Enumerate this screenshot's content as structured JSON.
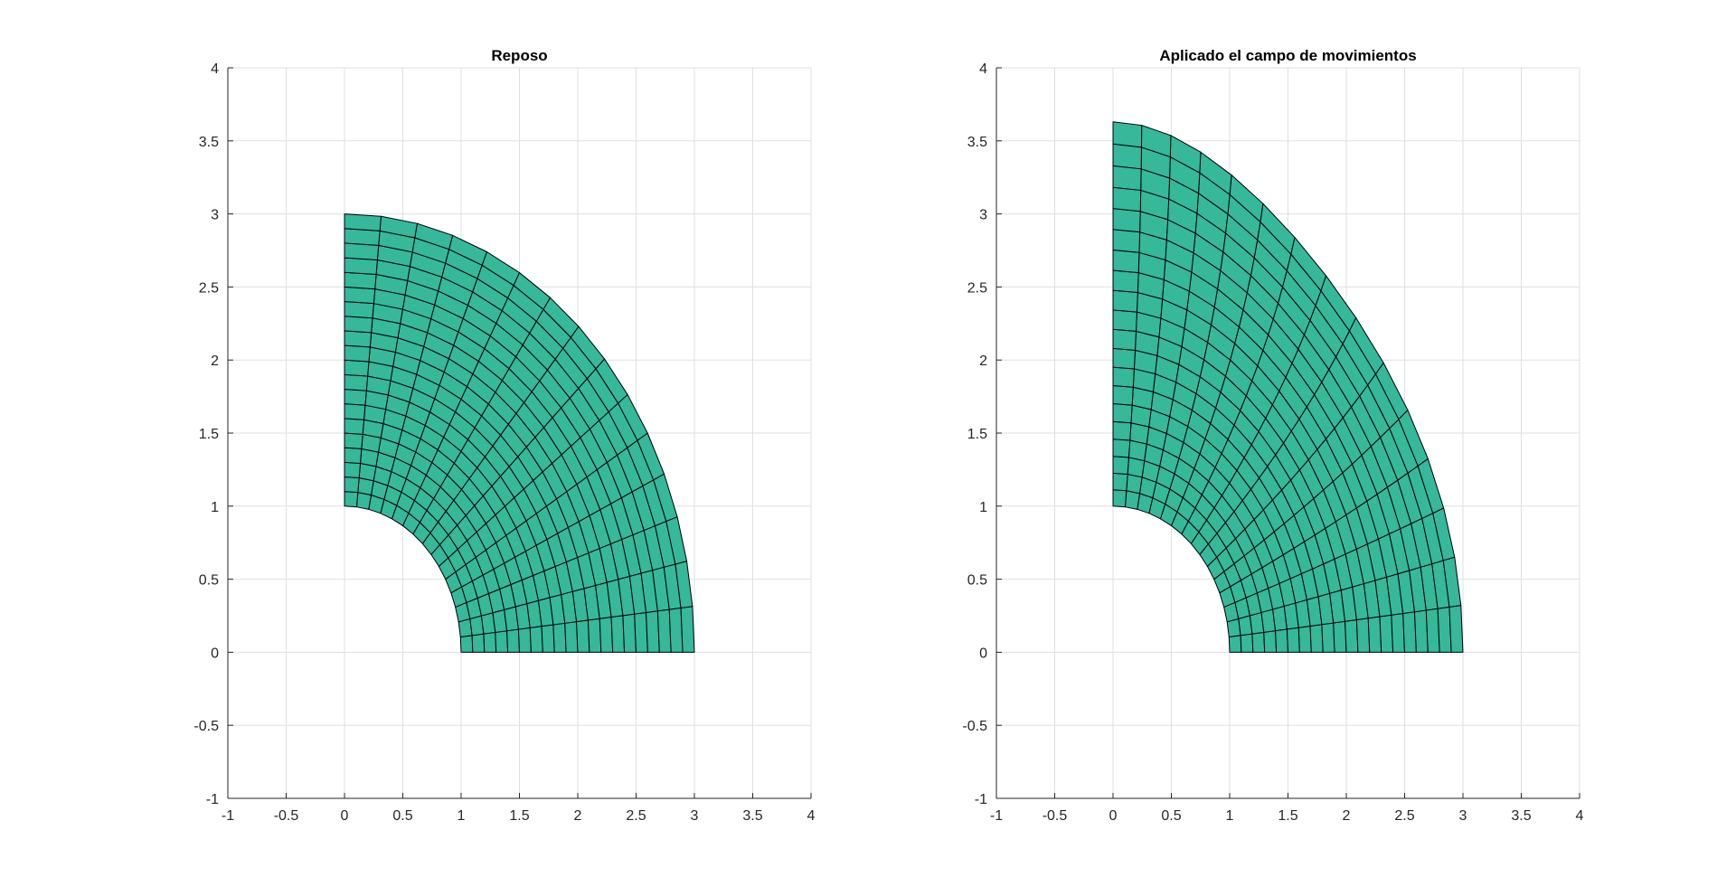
{
  "chart_data": [
    {
      "type": "mesh",
      "title": "Reposo",
      "xlim": [
        -1,
        4
      ],
      "ylim": [
        -1,
        4
      ],
      "x_ticks": [
        -1,
        -0.5,
        0,
        0.5,
        1,
        1.5,
        2,
        2.5,
        3,
        3.5,
        4
      ],
      "x_tick_labels": [
        "-1",
        "-0.5",
        "0",
        "0.5",
        "1",
        "1.5",
        "2",
        "2.5",
        "3",
        "3.5",
        "4"
      ],
      "y_ticks": [
        -1,
        -0.5,
        0,
        0.5,
        1,
        1.5,
        2,
        2.5,
        3,
        3.5,
        4
      ],
      "y_tick_labels": [
        "-1",
        "-0.5",
        "0",
        "0.5",
        "1",
        "1.5",
        "2",
        "2.5",
        "3",
        "3.5",
        "4"
      ],
      "grid": true,
      "face_color": "#36b89a",
      "edge_color": "#000000",
      "geometry": "quarter-annulus",
      "inner_radius": 1,
      "outer_radius": 3,
      "angle_range_deg": [
        0,
        90
      ],
      "radial_divisions": 20,
      "angular_divisions": 15,
      "displacement_scale": 0
    },
    {
      "type": "mesh",
      "title": "Aplicado el campo de movimientos",
      "xlim": [
        -1,
        4
      ],
      "ylim": [
        -1,
        4
      ],
      "x_ticks": [
        -1,
        -0.5,
        0,
        0.5,
        1,
        1.5,
        2,
        2.5,
        3,
        3.5,
        4
      ],
      "x_tick_labels": [
        "-1",
        "-0.5",
        "0",
        "0.5",
        "1",
        "1.5",
        "2",
        "2.5",
        "3",
        "3.5",
        "4"
      ],
      "y_ticks": [
        -1,
        -0.5,
        0,
        0.5,
        1,
        1.5,
        2,
        2.5,
        3,
        3.5,
        4
      ],
      "y_tick_labels": [
        "-1",
        "-0.5",
        "0",
        "0.5",
        "1",
        "1.5",
        "2",
        "2.5",
        "3",
        "3.5",
        "4"
      ],
      "grid": true,
      "face_color": "#36b89a",
      "edge_color": "#000000",
      "geometry": "quarter-annulus",
      "inner_radius": 1,
      "outer_radius": 3,
      "angle_range_deg": [
        0,
        90
      ],
      "radial_divisions": 20,
      "angular_divisions": 15,
      "displacement_scale": 1,
      "deformed_outer_corner_top": [
        0,
        3.63
      ],
      "deformed_outer_corner_right": [
        3,
        0
      ]
    }
  ]
}
